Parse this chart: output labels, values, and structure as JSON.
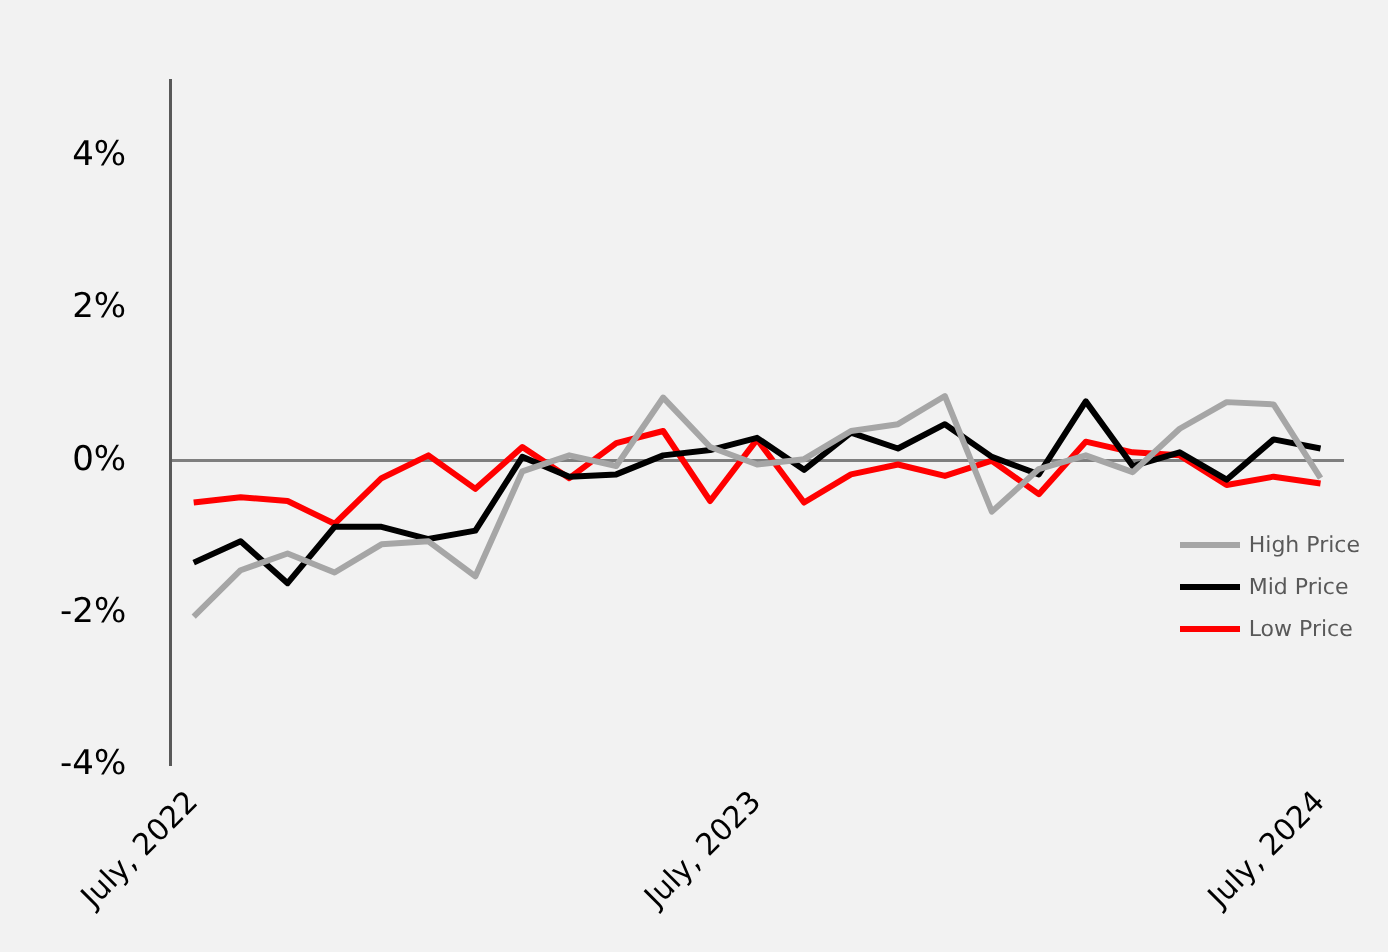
{
  "chart_data": {
    "type": "line",
    "categories": [
      "July, 2022",
      null,
      null,
      null,
      null,
      null,
      null,
      null,
      null,
      null,
      null,
      null,
      "July, 2023",
      null,
      null,
      null,
      null,
      null,
      null,
      null,
      null,
      null,
      null,
      null,
      "July, 2024"
    ],
    "series": [
      {
        "name": "High Price",
        "color": "#a6a6a6",
        "values": [
          -2.05,
          -1.44,
          -1.22,
          -1.47,
          -1.1,
          -1.06,
          -1.52,
          -0.14,
          0.07,
          -0.07,
          0.83,
          0.18,
          -0.05,
          0.02,
          0.39,
          0.48,
          0.85,
          -0.67,
          -0.11,
          0.07,
          -0.15,
          0.42,
          0.77,
          0.74,
          -0.23
        ]
      },
      {
        "name": "Mid Price",
        "color": "#000000",
        "values": [
          -1.34,
          -1.06,
          -1.61,
          -0.87,
          -0.87,
          -1.03,
          -0.92,
          0.05,
          -0.21,
          -0.18,
          0.07,
          0.14,
          0.3,
          -0.12,
          0.37,
          0.16,
          0.48,
          0.05,
          -0.18,
          0.78,
          -0.07,
          0.11,
          -0.25,
          0.28,
          0.16
        ]
      },
      {
        "name": "Low Price",
        "color": "#ff0000",
        "values": [
          -0.55,
          -0.48,
          -0.53,
          -0.83,
          -0.23,
          0.07,
          -0.37,
          0.18,
          -0.23,
          0.23,
          0.39,
          -0.53,
          0.28,
          -0.55,
          -0.18,
          -0.05,
          -0.2,
          0,
          -0.44,
          0.25,
          0.11,
          0.07,
          -0.32,
          -0.21,
          -0.3
        ]
      }
    ],
    "ylim": [
      -4,
      5
    ],
    "yticks": [
      {
        "value": -4,
        "label": "-4%"
      },
      {
        "value": -2,
        "label": "-2%"
      },
      {
        "value": 0,
        "label": "0%"
      },
      {
        "value": 2,
        "label": "2%"
      },
      {
        "value": 4,
        "label": "4%"
      }
    ],
    "legend": "right",
    "marker": "none",
    "line_style": "solid"
  }
}
